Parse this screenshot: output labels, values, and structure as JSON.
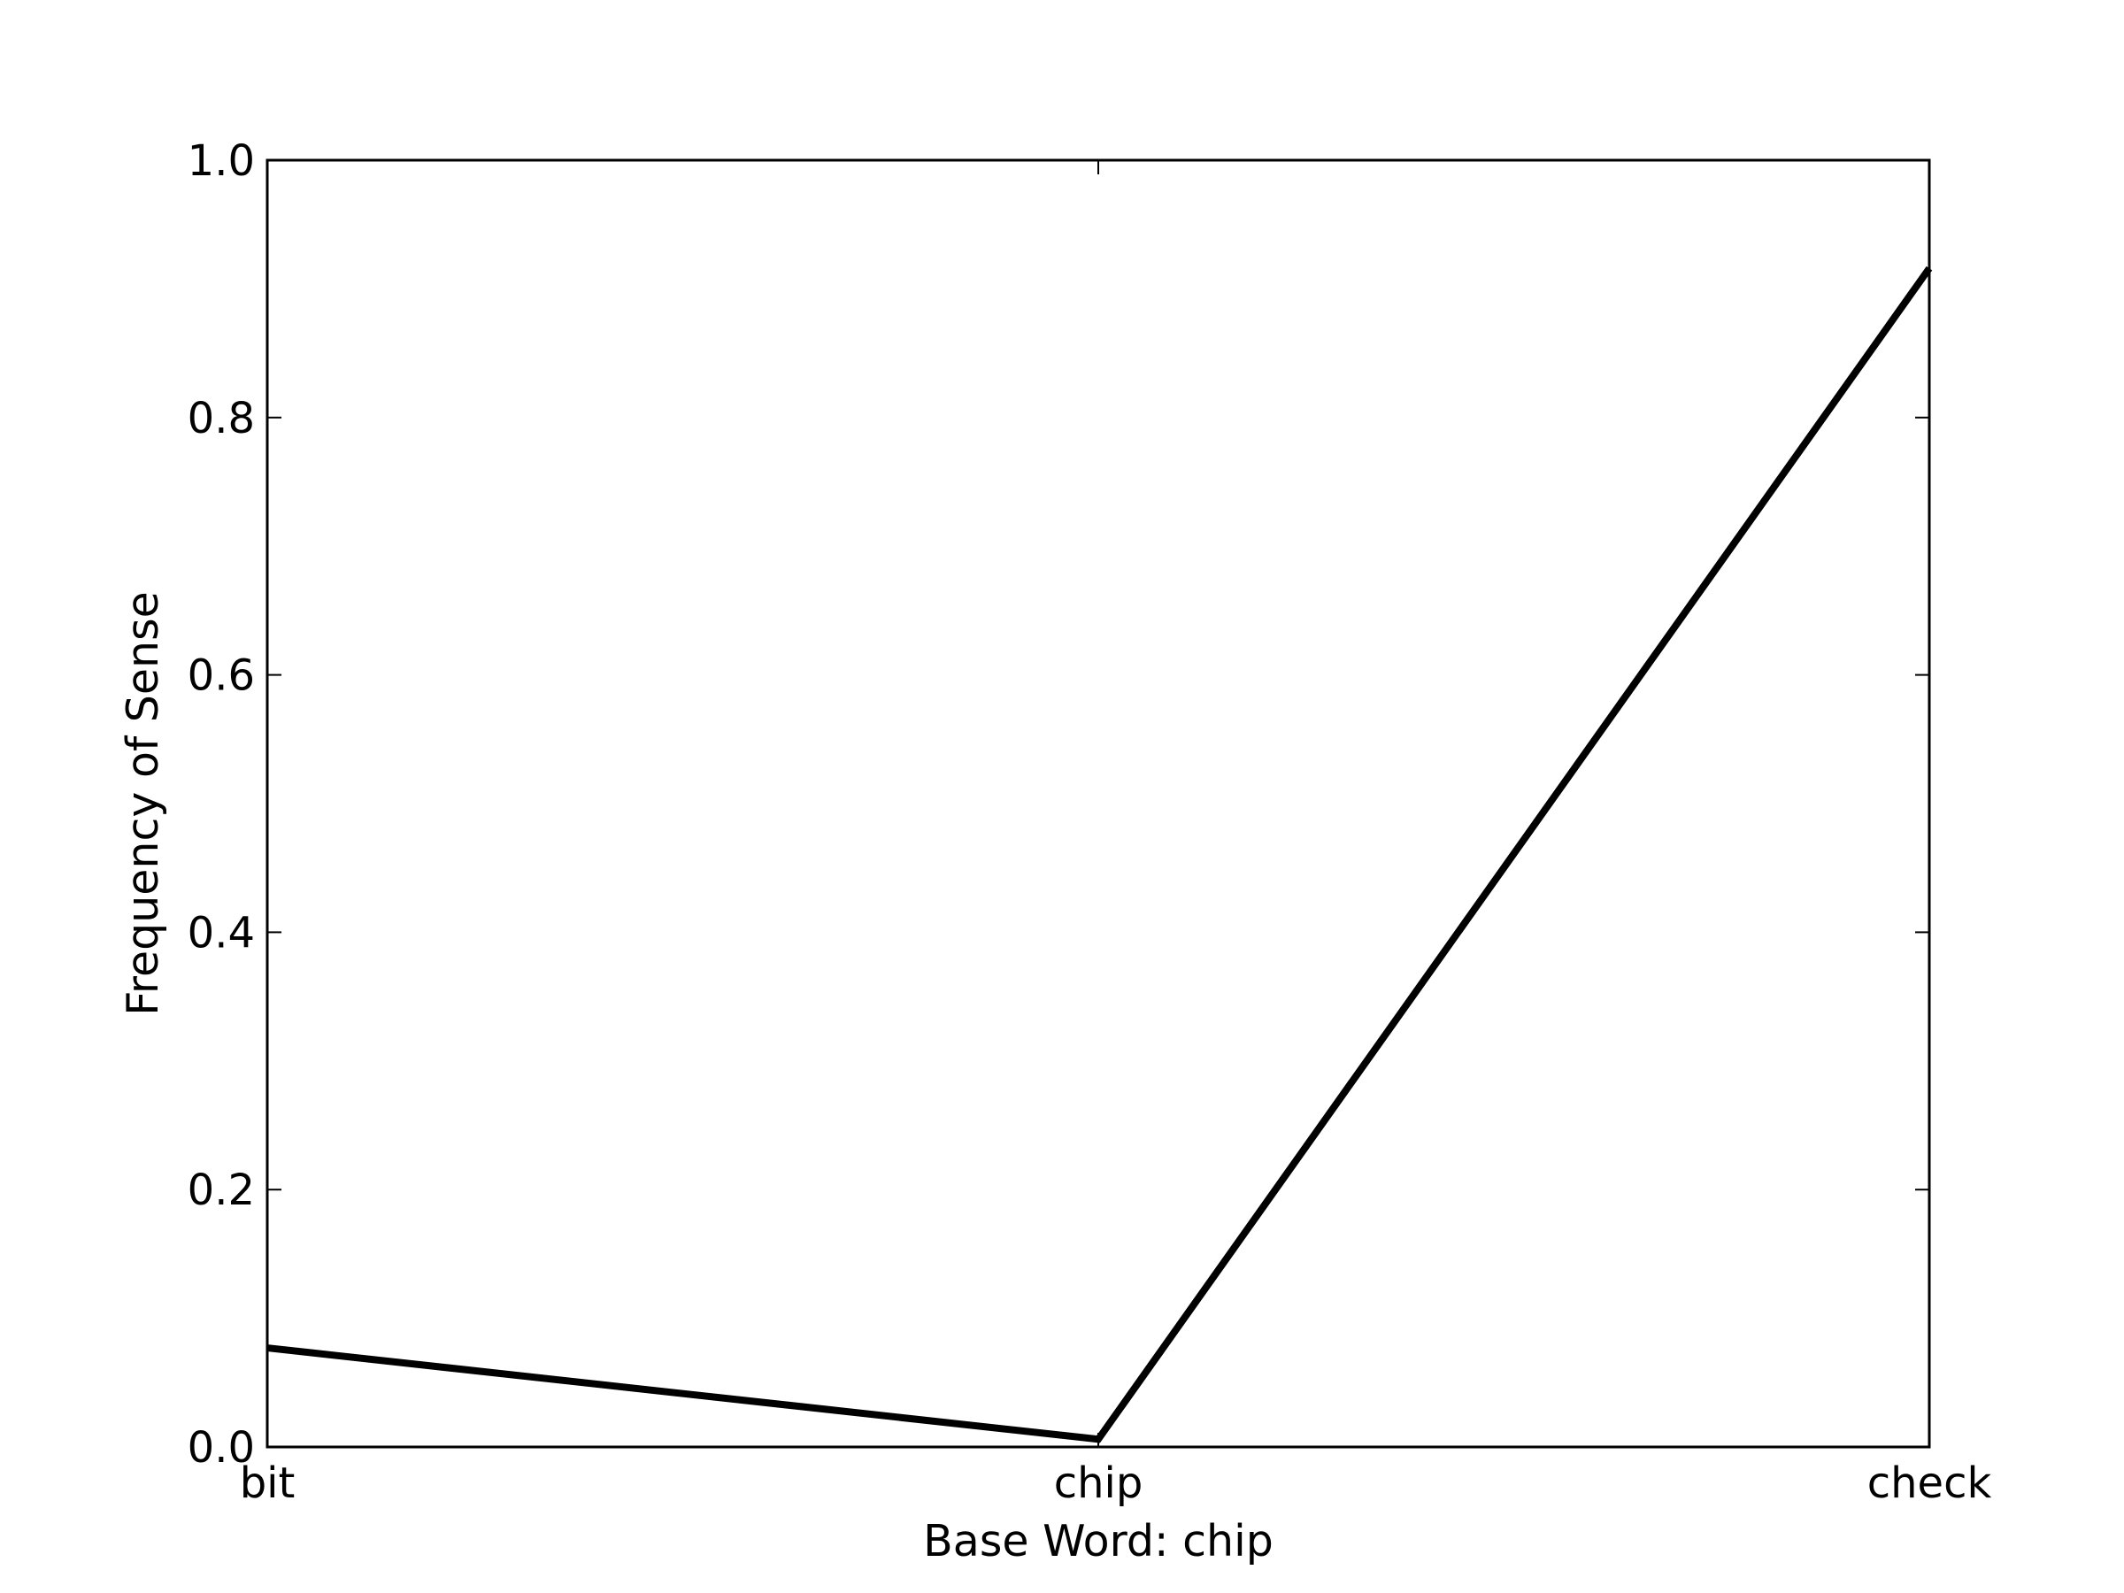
{
  "chart_data": {
    "type": "line",
    "title": "",
    "xlabel": "Base Word: chip",
    "ylabel": "Frequency of Sense",
    "categories": [
      "bit",
      "chip",
      "check"
    ],
    "series": [
      {
        "values": [
          0.077,
          0.006,
          0.916
        ]
      }
    ],
    "ylim": [
      0.0,
      1.0
    ],
    "yticks": [
      "0.0",
      "0.2",
      "0.4",
      "0.6",
      "0.8",
      "1.0"
    ],
    "grid": false,
    "line_color": "#000000"
  }
}
